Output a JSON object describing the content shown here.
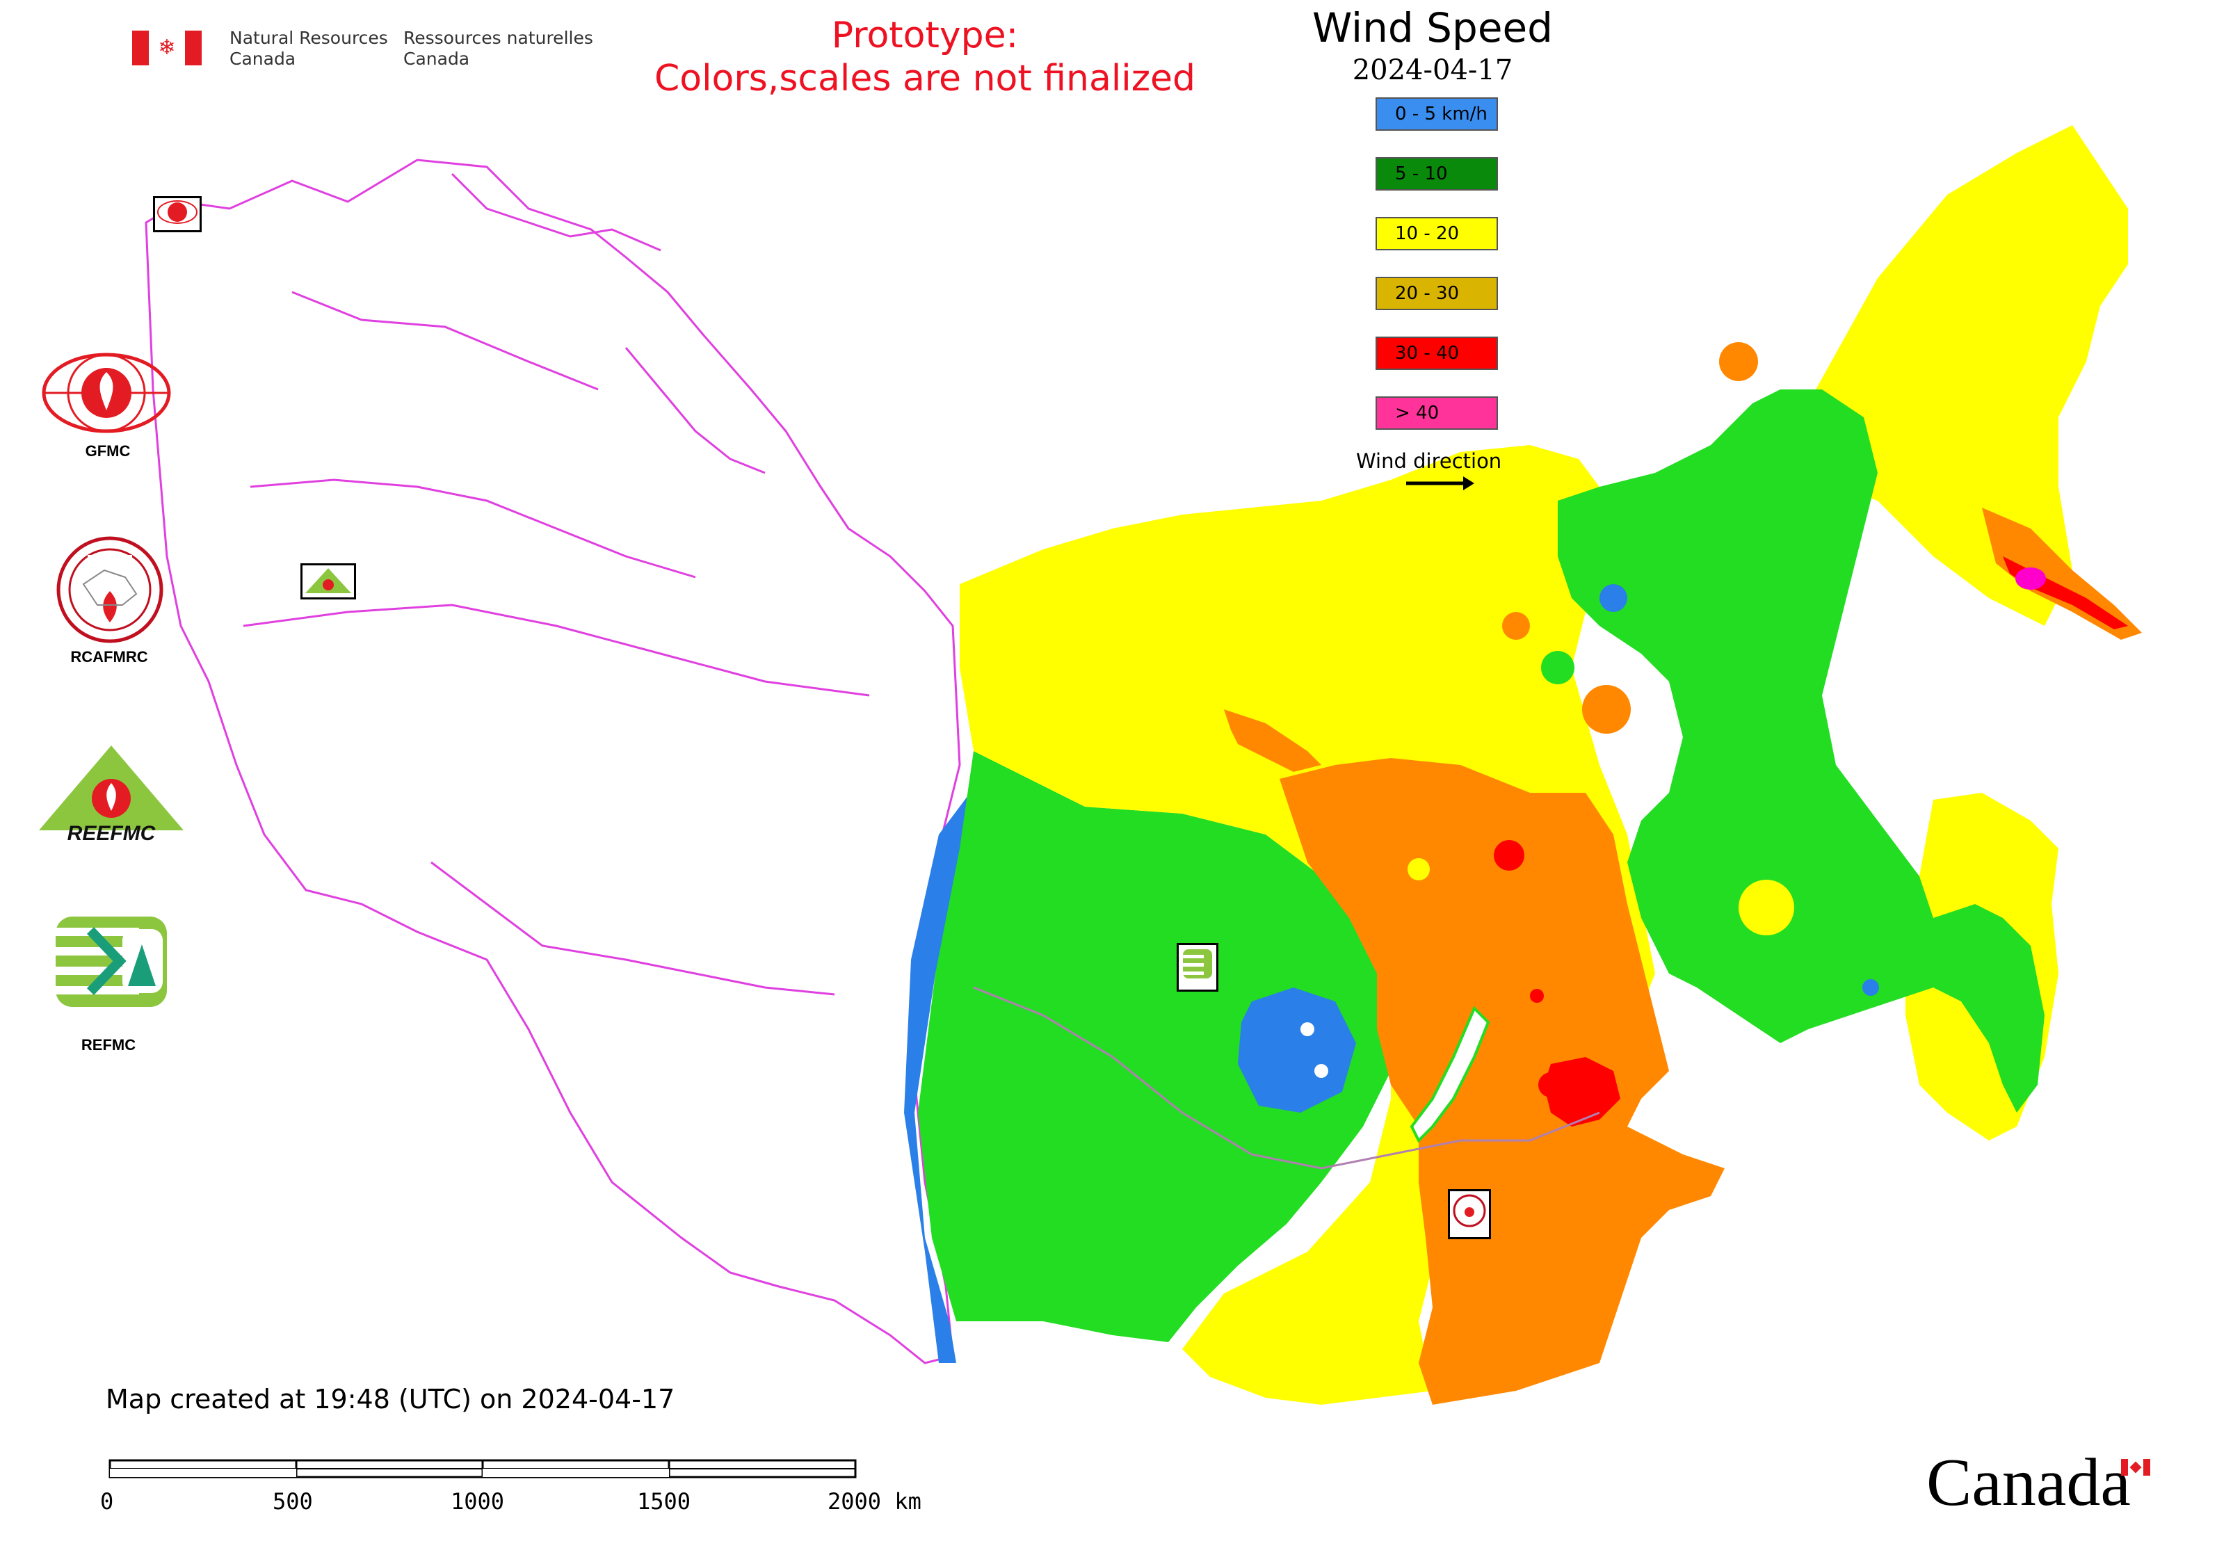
{
  "header": {
    "agency_en_line1": "Natural Resources",
    "agency_en_line2": "Canada",
    "agency_fr_line1": "Ressources naturelles",
    "agency_fr_line2": "Canada",
    "prototype_line1": "Prototype:",
    "prototype_line2": "Colors,scales are not finalized"
  },
  "title": {
    "main": "Wind Speed",
    "date": "2024-04-17"
  },
  "legend": {
    "items": [
      {
        "label": "0 - 5 km/h",
        "color": "#3a8ef0"
      },
      {
        "label": "5 - 10",
        "color": "#0a8a0a"
      },
      {
        "label": "10 - 20",
        "color": "#ffff00"
      },
      {
        "label": "20 - 30",
        "color": "#d9b400"
      },
      {
        "label": "30 - 40",
        "color": "#ff0000"
      },
      {
        "label": "> 40",
        "color": "#ff3399"
      }
    ],
    "wind_direction_label": "Wind direction"
  },
  "logos": {
    "gfmc": "GFMC",
    "rcafmrc": "RCAFMRC",
    "reefmc": "REEFMC",
    "refmc": "REFMC"
  },
  "footer": {
    "created": "Map created at 19:48 (UTC) on 2024-04-17",
    "scale_labels": [
      "0",
      "500",
      "1000",
      "1500",
      "2000 km"
    ],
    "canada_wordmark": "Canada"
  },
  "colors": {
    "border": "#e040e0",
    "blue": "#2a7fe8",
    "green": "#22dd22",
    "yellow": "#ffff00",
    "orange": "#ff8800",
    "red": "#ff0000",
    "magenta": "#ff00cc",
    "prototype_red": "#ee1122"
  }
}
